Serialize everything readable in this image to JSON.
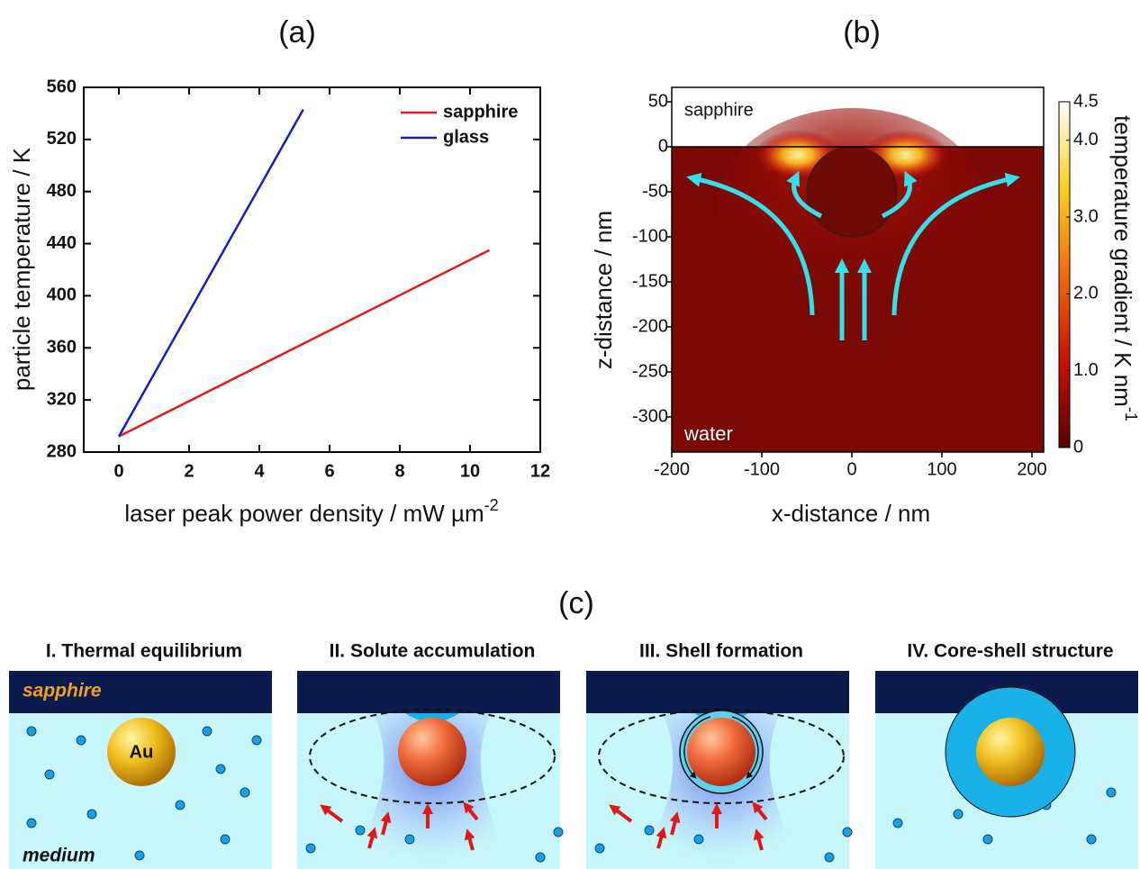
{
  "chart_data": [
    {
      "type": "line",
      "title": "(a)",
      "xlabel": "laser peak power density / mW µm",
      "xlabel_superscript": "-2",
      "ylabel": "particle temperature / K",
      "xlim": [
        -1,
        12
      ],
      "ylim": [
        280,
        560
      ],
      "xticks": [
        0,
        2,
        4,
        6,
        8,
        10,
        12
      ],
      "yticks": [
        280,
        320,
        360,
        400,
        440,
        480,
        520,
        560
      ],
      "legend": "upper right",
      "series": [
        {
          "name": "sapphire",
          "color": "#e8191f",
          "x": [
            0,
            10.55
          ],
          "values": [
            292,
            435
          ]
        },
        {
          "name": "glass",
          "color": "#1b1bbf",
          "x": [
            0,
            5.25
          ],
          "values": [
            292,
            543
          ]
        }
      ]
    },
    {
      "type": "heatmap",
      "title": "(b)",
      "xlabel": "x-distance / nm",
      "ylabel": "z-distance / nm",
      "xlim": [
        -200,
        213
      ],
      "ylim": [
        -339,
        66
      ],
      "xticks": [
        -200,
        -100,
        0,
        100,
        200
      ],
      "yticks": [
        50,
        0,
        -50,
        -100,
        -150,
        -200,
        -250,
        -300
      ],
      "top_label": "sapphire",
      "bottom_label": "water",
      "colorbar": {
        "label": "temperature gradient / K nm",
        "label_superscript": "-1",
        "lim": [
          0,
          4.5
        ],
        "ticks": [
          0,
          {
            "value": 1,
            "label": "1.0"
          },
          {
            "value": 2,
            "label": "2.0"
          },
          {
            "value": 3,
            "label": "3.0"
          },
          {
            "value": 4,
            "label": "4.0"
          },
          4.5
        ]
      }
    }
  ],
  "diagram": {
    "title": "(c)",
    "panels": [
      {
        "title": "I. Thermal equilibrium",
        "top_label": "sapphire",
        "core_label": "Au",
        "bottom_label": "medium"
      },
      {
        "title": "II. Solute accumulation"
      },
      {
        "title": "III. Shell formation"
      },
      {
        "title": "IV. Core-shell structure"
      }
    ]
  }
}
